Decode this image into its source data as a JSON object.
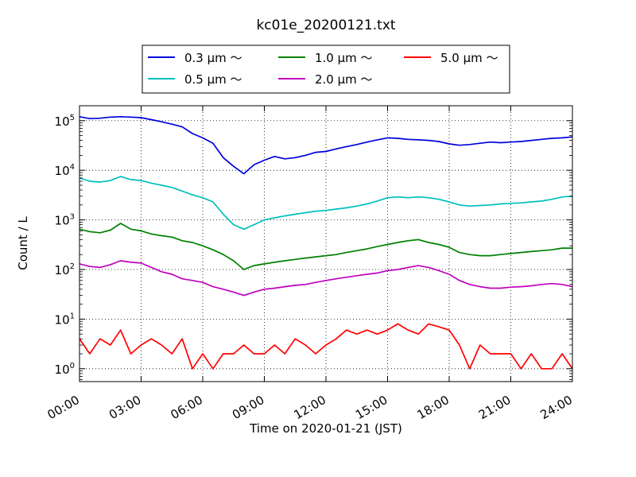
{
  "chart_data": {
    "type": "line",
    "title": "kc01e_20200121.txt",
    "xlabel": "Time on 2020-01-21 (JST)",
    "ylabel": "Count / L",
    "x_unit": "hours",
    "xlim": [
      0,
      24
    ],
    "ylim": [
      0.55,
      200000
    ],
    "y_scale": "log",
    "grid": true,
    "legend_position": "top-center",
    "x_ticks": [
      {
        "value": 0,
        "label": "00:00"
      },
      {
        "value": 3,
        "label": "03:00"
      },
      {
        "value": 6,
        "label": "06:00"
      },
      {
        "value": 9,
        "label": "09:00"
      },
      {
        "value": 12,
        "label": "12:00"
      },
      {
        "value": 15,
        "label": "15:00"
      },
      {
        "value": 18,
        "label": "18:00"
      },
      {
        "value": 21,
        "label": "21:00"
      },
      {
        "value": 24,
        "label": "24:00"
      }
    ],
    "y_ticks": [
      {
        "value": 1,
        "base": "10",
        "exp": "0"
      },
      {
        "value": 10,
        "base": "10",
        "exp": "1"
      },
      {
        "value": 100,
        "base": "10",
        "exp": "2"
      },
      {
        "value": 1000,
        "base": "10",
        "exp": "3"
      },
      {
        "value": 10000,
        "base": "10",
        "exp": "4"
      },
      {
        "value": 100000,
        "base": "10",
        "exp": "5"
      }
    ],
    "series": [
      {
        "name": "0.3 μm ～",
        "color": "#0000dd",
        "x": [
          0,
          0.5,
          1,
          1.5,
          2,
          2.5,
          3,
          3.5,
          4,
          4.5,
          5,
          5.5,
          6,
          6.5,
          7,
          7.5,
          8,
          8.5,
          9,
          9.5,
          10,
          10.5,
          11,
          11.5,
          12,
          12.5,
          13,
          13.5,
          14,
          14.5,
          15,
          15.5,
          16,
          16.5,
          17,
          17.5,
          18,
          18.5,
          19,
          19.5,
          20,
          20.5,
          21,
          21.5,
          22,
          22.5,
          23,
          23.5,
          24
        ],
        "values": [
          120000,
          110000,
          112000,
          118000,
          120000,
          118000,
          115000,
          105000,
          95000,
          85000,
          75000,
          55000,
          45000,
          35000,
          18000,
          12000,
          8500,
          13000,
          16000,
          19000,
          17000,
          18000,
          20000,
          23000,
          24000,
          27000,
          30000,
          33000,
          37000,
          41000,
          45000,
          44000,
          42000,
          41000,
          40000,
          38000,
          34000,
          32000,
          33000,
          35000,
          37000,
          36000,
          37000,
          38000,
          40000,
          42000,
          44000,
          45000,
          47000
        ]
      },
      {
        "name": "0.5 μm ～",
        "color": "#00bfbf",
        "x": [
          0,
          0.5,
          1,
          1.5,
          2,
          2.5,
          3,
          3.5,
          4,
          4.5,
          5,
          5.5,
          6,
          6.5,
          7,
          7.5,
          8,
          8.5,
          9,
          9.5,
          10,
          10.5,
          11,
          11.5,
          12,
          12.5,
          13,
          13.5,
          14,
          14.5,
          15,
          15.5,
          16,
          16.5,
          17,
          17.5,
          18,
          18.5,
          19,
          19.5,
          20,
          20.5,
          21,
          21.5,
          22,
          22.5,
          23,
          23.5,
          24
        ],
        "values": [
          7000,
          6000,
          5800,
          6200,
          7500,
          6500,
          6200,
          5500,
          5000,
          4500,
          3800,
          3200,
          2800,
          2300,
          1300,
          800,
          650,
          800,
          1000,
          1100,
          1200,
          1300,
          1400,
          1500,
          1550,
          1650,
          1750,
          1900,
          2100,
          2400,
          2800,
          2900,
          2800,
          2900,
          2800,
          2600,
          2300,
          2000,
          1900,
          1950,
          2000,
          2100,
          2150,
          2200,
          2300,
          2400,
          2600,
          2900,
          3000
        ]
      },
      {
        "name": "1.0 μm ～",
        "color": "#008000",
        "x": [
          0,
          0.5,
          1,
          1.5,
          2,
          2.5,
          3,
          3.5,
          4,
          4.5,
          5,
          5.5,
          6,
          6.5,
          7,
          7.5,
          8,
          8.5,
          9,
          9.5,
          10,
          10.5,
          11,
          11.5,
          12,
          12.5,
          13,
          13.5,
          14,
          14.5,
          15,
          15.5,
          16,
          16.5,
          17,
          17.5,
          18,
          18.5,
          19,
          19.5,
          20,
          20.5,
          21,
          21.5,
          22,
          22.5,
          23,
          23.5,
          24
        ],
        "values": [
          650,
          580,
          550,
          620,
          850,
          650,
          600,
          520,
          480,
          450,
          380,
          350,
          300,
          250,
          200,
          150,
          100,
          120,
          130,
          140,
          150,
          160,
          170,
          180,
          190,
          200,
          220,
          240,
          260,
          290,
          320,
          350,
          380,
          400,
          350,
          320,
          280,
          220,
          200,
          190,
          190,
          200,
          210,
          220,
          230,
          240,
          250,
          270,
          270
        ]
      },
      {
        "name": "2.0 μm ～",
        "color": "#bf00bf",
        "x": [
          0,
          0.5,
          1,
          1.5,
          2,
          2.5,
          3,
          3.5,
          4,
          4.5,
          5,
          5.5,
          6,
          6.5,
          7,
          7.5,
          8,
          8.5,
          9,
          9.5,
          10,
          10.5,
          11,
          11.5,
          12,
          12.5,
          13,
          13.5,
          14,
          14.5,
          15,
          15.5,
          16,
          16.5,
          17,
          17.5,
          18,
          18.5,
          19,
          19.5,
          20,
          20.5,
          21,
          21.5,
          22,
          22.5,
          23,
          23.5,
          24
        ],
        "values": [
          130,
          115,
          110,
          125,
          150,
          140,
          135,
          110,
          90,
          80,
          65,
          60,
          55,
          45,
          40,
          35,
          30,
          35,
          40,
          42,
          45,
          48,
          50,
          55,
          60,
          65,
          70,
          75,
          80,
          85,
          95,
          100,
          110,
          120,
          110,
          95,
          80,
          60,
          50,
          45,
          42,
          42,
          44,
          45,
          47,
          50,
          52,
          50,
          45
        ]
      },
      {
        "name": "5.0 μm ～",
        "color": "#ff0000",
        "x": [
          0,
          0.5,
          1,
          1.5,
          2,
          2.5,
          3,
          3.5,
          4,
          4.5,
          5,
          5.5,
          6,
          6.5,
          7,
          7.5,
          8,
          8.5,
          9,
          9.5,
          10,
          10.5,
          11,
          11.5,
          12,
          12.5,
          13,
          13.5,
          14,
          14.5,
          15,
          15.5,
          16,
          16.5,
          17,
          17.5,
          18,
          18.5,
          19,
          19.5,
          20,
          20.5,
          21,
          21.5,
          22,
          22.5,
          23,
          23.5,
          24
        ],
        "values": [
          4,
          2,
          4,
          3,
          6,
          2,
          3,
          4,
          3,
          2,
          4,
          1,
          2,
          1,
          2,
          2,
          3,
          2,
          2,
          3,
          2,
          4,
          3,
          2,
          3,
          4,
          6,
          5,
          6,
          5,
          6,
          8,
          6,
          5,
          8,
          7,
          6,
          3,
          1,
          3,
          2,
          2,
          2,
          1,
          2,
          1,
          1,
          2,
          1
        ]
      }
    ]
  }
}
